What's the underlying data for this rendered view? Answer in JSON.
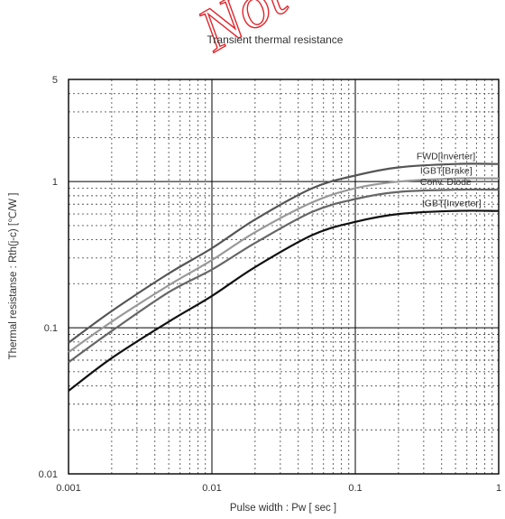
{
  "watermark": "Not",
  "chart_data": {
    "type": "line",
    "title": "Transient thermal resistance",
    "xlabel": "Pulse width  :  Pw  [ sec ]",
    "ylabel": "Thermal resistanse  :  Rth(j-c)  [℃/W ]",
    "xscale": "log",
    "yscale": "log",
    "xlim": [
      0.001,
      1
    ],
    "ylim": [
      0.01,
      5
    ],
    "x_ticks": [
      "0.001",
      "0.01",
      "0.1",
      "1"
    ],
    "y_ticks": [
      "0.01",
      "0.1",
      "1",
      "5"
    ],
    "grid": true,
    "x": [
      0.001,
      0.002,
      0.005,
      0.01,
      0.02,
      0.05,
      0.1,
      0.2,
      0.5,
      1
    ],
    "series": [
      {
        "name": "FWD[Inverter]",
        "color": "#555555",
        "values": [
          0.079,
          0.13,
          0.235,
          0.35,
          0.55,
          0.9,
          1.1,
          1.25,
          1.32,
          1.32
        ]
      },
      {
        "name": "IGBT[Brake]",
        "color": "#999999",
        "values": [
          0.068,
          0.11,
          0.195,
          0.29,
          0.45,
          0.72,
          0.9,
          1.0,
          1.05,
          1.05
        ]
      },
      {
        "name": "Conv. Diode",
        "color": "#666666",
        "values": [
          0.058,
          0.095,
          0.175,
          0.25,
          0.38,
          0.62,
          0.76,
          0.85,
          0.88,
          0.88
        ]
      },
      {
        "name": "IGBT[Inverter]",
        "color": "#111111",
        "values": [
          0.037,
          0.062,
          0.11,
          0.165,
          0.26,
          0.43,
          0.53,
          0.6,
          0.63,
          0.63
        ]
      }
    ]
  }
}
